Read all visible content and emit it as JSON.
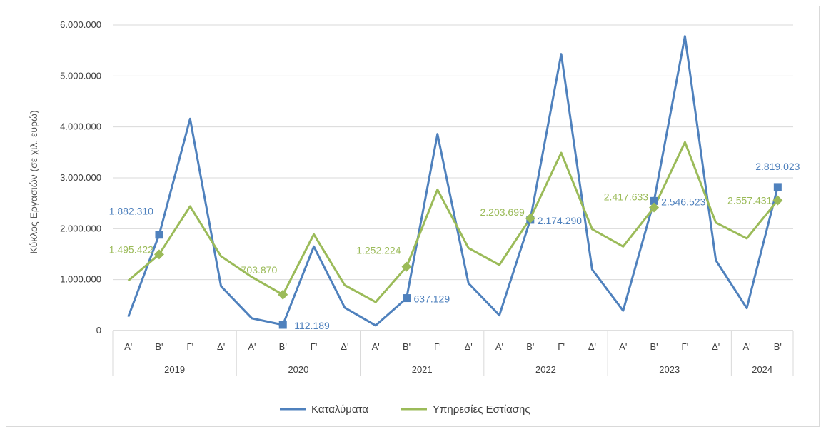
{
  "chart_data": {
    "type": "line",
    "ylabel": "Κύκλος Εργασιών (σε χιλ. ευρώ)",
    "ylim": [
      0,
      6000000
    ],
    "yticks": [
      0,
      1000000,
      2000000,
      3000000,
      4000000,
      5000000,
      6000000
    ],
    "ytick_labels": [
      "0",
      "1.000.000",
      "2.000.000",
      "3.000.000",
      "4.000.000",
      "5.000.000",
      "6.000.000"
    ],
    "categories": [
      "Α'",
      "Β'",
      "Γ'",
      "Δ'",
      "Α'",
      "Β'",
      "Γ'",
      "Δ'",
      "Α'",
      "Β'",
      "Γ'",
      "Δ'",
      "Α'",
      "Β'",
      "Γ'",
      "Δ'",
      "Α'",
      "Β'",
      "Γ'",
      "Δ'",
      "Α'",
      "Β'"
    ],
    "groups": [
      {
        "label": "2019",
        "count": 4
      },
      {
        "label": "2020",
        "count": 4
      },
      {
        "label": "2021",
        "count": 4
      },
      {
        "label": "2022",
        "count": 4
      },
      {
        "label": "2023",
        "count": 4
      },
      {
        "label": "2024",
        "count": 2
      }
    ],
    "grid": true,
    "legend_position": "bottom",
    "series": [
      {
        "name": "Καταλύματα",
        "color": "#4f81bd",
        "marker": "square",
        "values": [
          270000,
          1882310,
          4160000,
          870000,
          240000,
          112189,
          1650000,
          450000,
          100000,
          637129,
          3860000,
          930000,
          300000,
          2174290,
          5430000,
          1200000,
          390000,
          2546523,
          5780000,
          1380000,
          440000,
          2819023
        ],
        "labels": [
          {
            "index": 1,
            "text": "1.882.310"
          },
          {
            "index": 5,
            "text": "112.189"
          },
          {
            "index": 9,
            "text": "637.129"
          },
          {
            "index": 13,
            "text": "2.174.290"
          },
          {
            "index": 17,
            "text": "2.546.523"
          },
          {
            "index": 21,
            "text": "2.819.023"
          }
        ]
      },
      {
        "name": "Υπηρεσίες Εστίασης",
        "color": "#9bbb59",
        "marker": "diamond",
        "values": [
          980000,
          1495422,
          2440000,
          1460000,
          1050000,
          703870,
          1890000,
          890000,
          560000,
          1252224,
          2770000,
          1620000,
          1290000,
          2203699,
          3490000,
          1990000,
          1650000,
          2417633,
          3700000,
          2120000,
          1810000,
          2557431
        ],
        "labels": [
          {
            "index": 1,
            "text": "1.495.422"
          },
          {
            "index": 5,
            "text": "703.870"
          },
          {
            "index": 9,
            "text": "1.252.224"
          },
          {
            "index": 13,
            "text": "2.203.699"
          },
          {
            "index": 17,
            "text": "2.417.633"
          },
          {
            "index": 21,
            "text": "2.557.431"
          }
        ]
      }
    ]
  }
}
